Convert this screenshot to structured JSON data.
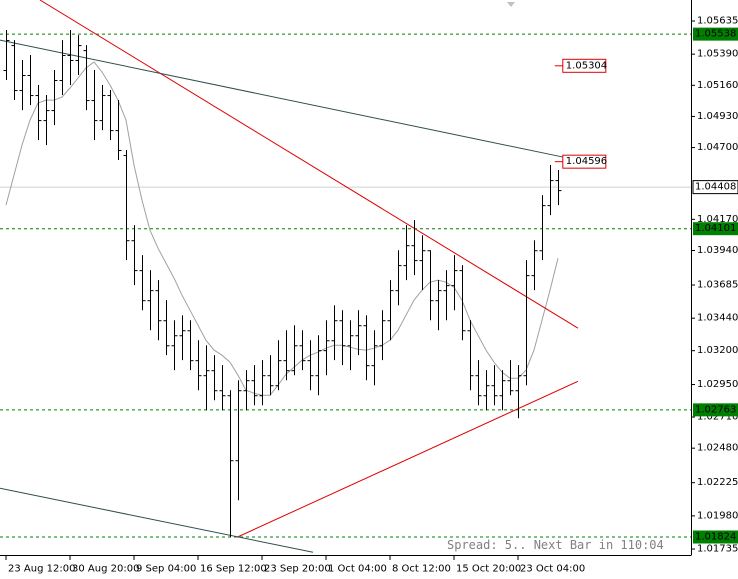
{
  "chart_data": {
    "type": "ohlc",
    "xlim": [
      -0.75,
      85.625
    ],
    "ylim": [
      1.01691,
      1.0579
    ],
    "bar_color": "#000000",
    "xticks": [
      {
        "value": 0,
        "label": "23 Aug 12:00"
      },
      {
        "value": 8,
        "label": "30 Aug 20:00"
      },
      {
        "value": 16,
        "label": "9 Sep 04:00"
      },
      {
        "value": 24,
        "label": "16 Sep 12:00"
      },
      {
        "value": 32,
        "label": "23 Sep 20:00"
      },
      {
        "value": 40,
        "label": "1 Oct 04:00"
      },
      {
        "value": 48,
        "label": "8 Oct 12:00"
      },
      {
        "value": 56,
        "label": "15 Oct 20:00"
      },
      {
        "value": 64,
        "label": "23 Oct 04:00"
      }
    ],
    "yticks": [
      1.05635,
      {
        "value": 1.0539,
        "label": "1.05390"
      },
      {
        "value": 1.0516,
        "label": "1.05160"
      },
      {
        "value": 1.0493,
        "label": "1.04930"
      },
      {
        "value": 1.047,
        "label": "1.04700"
      },
      {
        "value": 1.0417,
        "label": "1.04170"
      },
      {
        "value": 1.0394,
        "label": "1.03940"
      },
      1.03685,
      {
        "value": 1.0344,
        "label": "1.03440"
      },
      {
        "value": 1.032,
        "label": "1.03200"
      },
      {
        "value": 1.0295,
        "label": "1.02950"
      },
      {
        "value": 1.0271,
        "label": "1.02710"
      },
      {
        "value": 1.0248,
        "label": "1.02480"
      },
      1.02225,
      {
        "value": 1.0198,
        "label": "1.01980"
      },
      1.01735
    ],
    "open": [
      1.05273,
      1.05457,
      1.05125,
      1.05236,
      1.05088,
      1.04903,
      1.04977,
      1.05199,
      1.05384,
      1.05347,
      1.0542,
      1.05051,
      1.04903,
      1.05088,
      1.04829,
      1.04645,
      1.04016,
      1.03795,
      1.03573,
      1.03647,
      1.03425,
      1.0324,
      1.03314,
      1.03351,
      1.0313,
      1.03019,
      1.03056,
      1.02908,
      1.02871,
      1.02391,
      1.02908,
      1.02982,
      1.02871,
      1.03019,
      1.02945,
      1.0313,
      1.03056,
      1.0324,
      1.0313,
      1.03019,
      1.03204,
      1.03277,
      1.03425,
      1.0324,
      1.03314,
      1.03388,
      1.03093,
      1.0324,
      1.03425,
      1.03647,
      1.03832,
      1.03979,
      1.03869,
      1.03942,
      1.03573,
      1.03647,
      1.03684,
      1.03795,
      1.03351,
      1.03019,
      1.02871,
      1.02945,
      1.02871,
      1.02982,
      1.02908,
      1.03019,
      1.03758,
      1.03942,
      1.04275,
      1.0446
    ],
    "high": [
      1.05568,
      1.05494,
      1.05347,
      1.05384,
      1.05162,
      1.05088,
      1.05273,
      1.05494,
      1.05568,
      1.05531,
      1.05457,
      1.05273,
      1.05162,
      1.05125,
      1.05051,
      1.04682,
      1.04127,
      1.03906,
      1.03795,
      1.03721,
      1.03573,
      1.03425,
      1.03462,
      1.03425,
      1.03277,
      1.0324,
      1.03167,
      1.03093,
      1.02908,
      1.02982,
      1.03056,
      1.03093,
      1.0313,
      1.03167,
      1.03277,
      1.03351,
      1.03388,
      1.03351,
      1.03277,
      1.03314,
      1.03425,
      1.03536,
      1.03499,
      1.03425,
      1.03499,
      1.03462,
      1.03351,
      1.03499,
      1.03721,
      1.03942,
      1.04127,
      1.04164,
      1.04053,
      1.03942,
      1.03721,
      1.03795,
      1.03906,
      1.03832,
      1.03425,
      1.0313,
      1.03056,
      1.03093,
      1.03056,
      1.0313,
      1.03093,
      1.03869,
      1.04016,
      1.04349,
      1.04571,
      1.04534
    ],
    "low": [
      1.05199,
      1.05051,
      1.04977,
      1.05014,
      1.04755,
      1.04718,
      1.04866,
      1.05088,
      1.05162,
      1.05236,
      1.04977,
      1.04755,
      1.04829,
      1.04755,
      1.04608,
      1.03869,
      1.03684,
      1.03499,
      1.03351,
      1.03277,
      1.03167,
      1.03056,
      1.0313,
      1.03056,
      1.02908,
      1.0276,
      1.02834,
      1.0276,
      1.01822,
      1.02095,
      1.0276,
      1.02797,
      1.02797,
      1.02871,
      1.02908,
      1.02982,
      1.03019,
      1.03056,
      1.02908,
      1.02871,
      1.03019,
      1.0313,
      1.03093,
      1.03056,
      1.03167,
      1.02982,
      1.02945,
      1.0313,
      1.03277,
      1.03536,
      1.03721,
      1.03758,
      1.03647,
      1.03425,
      1.03351,
      1.03425,
      1.03499,
      1.03277,
      1.02908,
      1.02797,
      1.0276,
      1.02797,
      1.0276,
      1.02871,
      1.02701,
      1.02945,
      1.03647,
      1.03869,
      1.04201,
      1.04275
    ],
    "close": [
      1.05494,
      1.05125,
      1.05236,
      1.05088,
      1.04903,
      1.04977,
      1.05199,
      1.05384,
      1.05347,
      1.05457,
      1.05051,
      1.04903,
      1.05088,
      1.04829,
      1.04682,
      1.04016,
      1.03795,
      1.03573,
      1.03647,
      1.03425,
      1.0324,
      1.03314,
      1.03351,
      1.0313,
      1.03019,
      1.03056,
      1.02908,
      1.02871,
      1.02391,
      1.02908,
      1.02982,
      1.02871,
      1.03019,
      1.02945,
      1.0313,
      1.03056,
      1.0324,
      1.0313,
      1.03019,
      1.03204,
      1.03277,
      1.03425,
      1.0324,
      1.03314,
      1.03388,
      1.03093,
      1.0324,
      1.03425,
      1.03647,
      1.03832,
      1.03979,
      1.03869,
      1.03942,
      1.03573,
      1.03647,
      1.03684,
      1.03795,
      1.03351,
      1.03019,
      1.02871,
      1.02945,
      1.02871,
      1.02982,
      1.02908,
      1.03019,
      1.03758,
      1.03942,
      1.04275,
      1.0446,
      1.04386
    ],
    "moving_average": [
      1.04275,
      1.04497,
      1.04718,
      1.04903,
      1.05029,
      1.05051,
      1.05051,
      1.05073,
      1.0514,
      1.05214,
      1.05288,
      1.05332,
      1.05258,
      1.05162,
      1.05051,
      1.04903,
      1.04571,
      1.04312,
      1.0409,
      1.03957,
      1.03847,
      1.03736,
      1.0361,
      1.03499,
      1.03388,
      1.03277,
      1.03204,
      1.03167,
      1.03115,
      1.03019,
      1.02908,
      1.02886,
      1.02871,
      1.02871,
      1.02945,
      1.03026,
      1.03078,
      1.0313,
      1.03167,
      1.03189,
      1.03218,
      1.0324,
      1.0324,
      1.03226,
      1.03211,
      1.03204,
      1.03218,
      1.0324,
      1.03277,
      1.03351,
      1.03462,
      1.03573,
      1.03647,
      1.03706,
      1.03721,
      1.03706,
      1.03669,
      1.03573,
      1.03425,
      1.03314,
      1.03204,
      1.03115,
      1.03041,
      1.02997,
      1.02997,
      1.03056,
      1.03204,
      1.03425,
      1.03647,
      1.03883
    ],
    "moving_average_color": "#a0a0a0",
    "trend_lines": [
      {
        "color": "#e00000",
        "x": [
          4.25,
          71.5
        ],
        "prices": [
          1.0579,
          1.03366
        ]
      },
      {
        "color": "#2f4f4f",
        "x": [
          -0.75,
          69.625
        ],
        "prices": [
          1.05494,
          1.0463
        ]
      },
      {
        "color": "#e00000",
        "x": [
          28.875,
          71.5
        ],
        "prices": [
          1.01822,
          1.02974
        ]
      },
      {
        "color": "#2f4f4f",
        "x": [
          -0.75,
          38.375
        ],
        "prices": [
          1.02184,
          1.01711
        ]
      }
    ],
    "levels": [
      1.05538,
      1.04101,
      1.02763,
      1.01824
    ],
    "level_color": "#008000",
    "bid": 1.04408,
    "price_labels": [
      {
        "value": 1.05304,
        "x": 68.6
      },
      {
        "value": 1.04596,
        "x": 68.6
      }
    ],
    "price_label_color": "#e00000",
    "status_text": "Spread: 5.. Next Bar in 110:04"
  }
}
